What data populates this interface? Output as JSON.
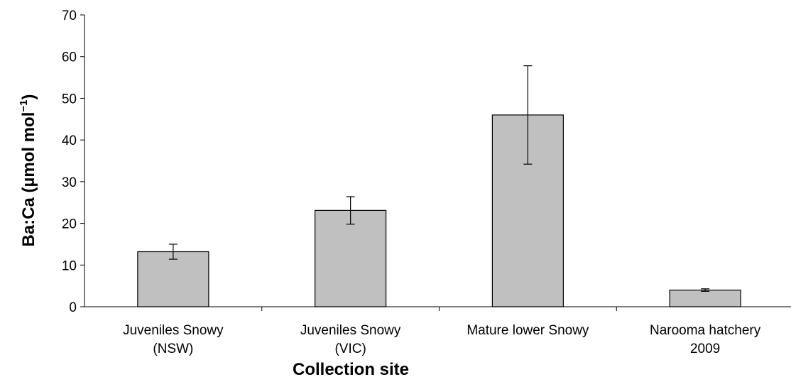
{
  "chart_data": {
    "type": "bar",
    "categories": [
      [
        "Juveniles Snowy",
        "(NSW)"
      ],
      [
        "Juveniles Snowy",
        "(VIC)"
      ],
      [
        "Mature lower Snowy"
      ],
      [
        "Narooma hatchery",
        "2009"
      ]
    ],
    "values": [
      13.2,
      23.1,
      46.0,
      4.0
    ],
    "error": [
      1.8,
      3.3,
      11.8,
      0.3
    ],
    "ylabel": "Ba:Ca (µmol mol",
    "ylabel_sup": "−1",
    "ylabel_close": ")",
    "xlabel": "Collection site",
    "ylim": [
      0,
      70
    ],
    "yticks": [
      0,
      10,
      20,
      30,
      40,
      50,
      60,
      70
    ],
    "grid": false,
    "colors": {
      "bar": "#c0c0c0",
      "edge": "#000000"
    }
  }
}
